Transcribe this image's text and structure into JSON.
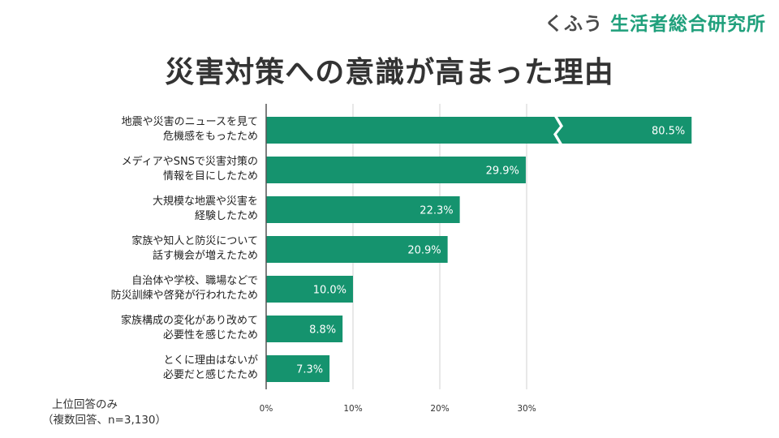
{
  "brand": {
    "prefix": "くふう",
    "name": "生活者総合研究所"
  },
  "colors": {
    "bar": "#15936e",
    "axis": "#555555",
    "grid": "#d0d0d0",
    "value_text": "#ffffff"
  },
  "chart_data": {
    "type": "bar",
    "orientation": "horizontal",
    "title": "災害対策への意識が高まった理由",
    "categories": [
      [
        "地震や災害のニュースを見て",
        "危機感をもったため"
      ],
      [
        "メディアやSNSで災害対策の",
        "情報を目にしたため"
      ],
      [
        "大規模な地震や災害を",
        "経験したため"
      ],
      [
        "家族や知人と防災について",
        "話す機会が増えたため"
      ],
      [
        "自治体や学校、職場などで",
        "防災訓練や啓発が行われたため"
      ],
      [
        "家族構成の変化があり改めて",
        "必要性を感じたため"
      ],
      [
        "とくに理由はないが",
        "必要だと感じたため"
      ]
    ],
    "values": [
      80.5,
      29.9,
      22.3,
      20.9,
      10.0,
      8.8,
      7.3
    ],
    "value_labels": [
      "80.5%",
      "29.9%",
      "22.3%",
      "20.9%",
      "10.0%",
      "8.8%",
      "7.3%"
    ],
    "xticks": [
      0,
      10,
      20,
      30
    ],
    "xtick_labels": [
      "0%",
      "10%",
      "20%",
      "30%"
    ],
    "xlim": [
      0,
      50
    ],
    "axis_break": {
      "bar_index": 0,
      "drawn_length_value": 49
    },
    "grid": true
  },
  "notes": [
    "上位回答のみ",
    "（複数回答、n=3,130）"
  ]
}
